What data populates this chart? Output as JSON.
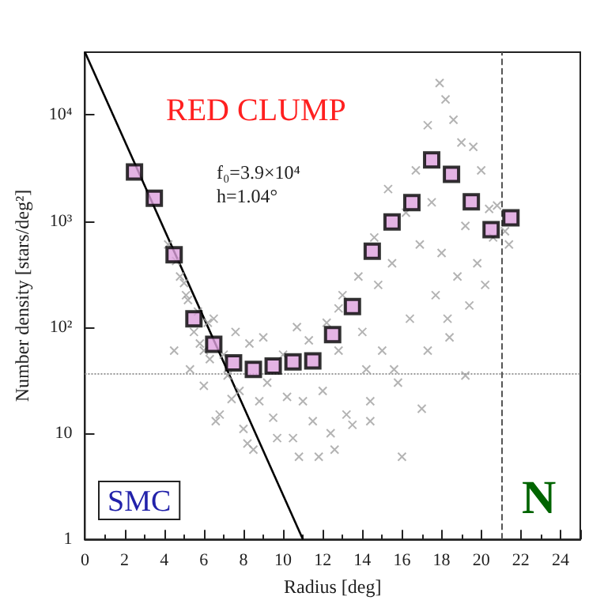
{
  "chart_data": {
    "type": "scatter",
    "xlabel": "Radius [deg]",
    "ylabel": "Number density [stars/deg²]",
    "annotations": [
      "RED CLUMP",
      "f₀=3.9×10⁴",
      "h=1.04°",
      "SMC",
      "N"
    ],
    "xlim": [
      0,
      25
    ],
    "xticks": [
      0,
      2,
      4,
      6,
      8,
      10,
      12,
      14,
      16,
      18,
      20,
      22,
      24
    ],
    "ylim": [
      1,
      39000
    ],
    "yticks": [
      1,
      10,
      {
        "value": 100,
        "label": "10²"
      },
      {
        "value": 1000,
        "label": "10³"
      },
      {
        "value": 10000,
        "label": "10⁴"
      }
    ],
    "log": "y",
    "ref_lines": [
      {
        "axis": "y",
        "value": 36,
        "label": null,
        "color": "#999999",
        "line_style": "dotted"
      },
      {
        "axis": "x",
        "value": 21,
        "label": null,
        "color": "#555555",
        "line_style": "dashed"
      }
    ],
    "series": [
      {
        "type": "scatter",
        "marker": "cross",
        "color": "#a0a0a0",
        "x": [
          4.2,
          4.6,
          4.8,
          5.0,
          5.2,
          5.1,
          5.5,
          5.7,
          5.8,
          6.0,
          6.2,
          6.3,
          6.6,
          6.8,
          6.0,
          6.5,
          7.0,
          7.2,
          7.4,
          7.6,
          7.8,
          8.0,
          8.2,
          8.5,
          8.8,
          9.0,
          9.2,
          9.5,
          9.7,
          10.0,
          10.2,
          10.5,
          10.8,
          11.0,
          11.3,
          11.5,
          11.8,
          12.0,
          12.2,
          12.4,
          12.6,
          12.8,
          13.0,
          13.2,
          13.5,
          13.8,
          14.0,
          14.2,
          14.4,
          14.6,
          14.8,
          15.0,
          15.3,
          15.5,
          15.8,
          16.0,
          16.2,
          16.4,
          16.7,
          16.9,
          17.0,
          17.3,
          17.5,
          17.7,
          17.9,
          18.0,
          18.2,
          18.4,
          18.6,
          18.8,
          19.0,
          19.2,
          19.4,
          19.6,
          19.8,
          20.0,
          20.2,
          20.4,
          20.6,
          20.8,
          21.2,
          21.4,
          4.5,
          5.3,
          8.3,
          10.7,
          12.8,
          14.4,
          15.6,
          17.3,
          18.3,
          19.2
        ],
        "values": [
          600,
          420,
          300,
          260,
          180,
          200,
          90,
          140,
          70,
          60,
          110,
          50,
          13,
          15,
          28,
          120,
          55,
          35,
          21,
          90,
          25,
          11,
          8,
          7,
          20,
          80,
          30,
          14,
          9,
          55,
          22,
          9,
          6,
          20,
          75,
          13,
          6,
          25,
          110,
          10,
          7,
          60,
          200,
          15,
          12,
          300,
          90,
          40,
          13,
          700,
          250,
          60,
          2000,
          400,
          30,
          6,
          1200,
          120,
          3000,
          600,
          17,
          8000,
          1500,
          200,
          20000,
          500,
          14000,
          80,
          9000,
          300,
          5500,
          900,
          160,
          5000,
          400,
          3000,
          250,
          1300,
          700,
          1400,
          800,
          600,
          60,
          40,
          70,
          100,
          150,
          20,
          40,
          60,
          120,
          35
        ]
      },
      {
        "type": "line",
        "marker": "none",
        "line_style": "solid",
        "color": "#000000",
        "x": [
          0,
          11
        ],
        "values": [
          39000,
          1
        ]
      },
      {
        "type": "scatter",
        "marker": "square",
        "color": "#dda0dd",
        "x": [
          2.5,
          3.5,
          4.5,
          5.5,
          6.5,
          7.5,
          8.5,
          9.5,
          10.5,
          11.5,
          12.5,
          13.5,
          14.5,
          15.5,
          16.5,
          17.5,
          18.5,
          19.5,
          20.5,
          21.5
        ],
        "values": [
          2900,
          1640,
          480,
          120,
          69,
          46,
          40,
          43,
          47,
          48,
          85,
          156,
          520,
          980,
          1490,
          3760,
          2750,
          1520,
          830,
          1070
        ]
      }
    ]
  }
}
